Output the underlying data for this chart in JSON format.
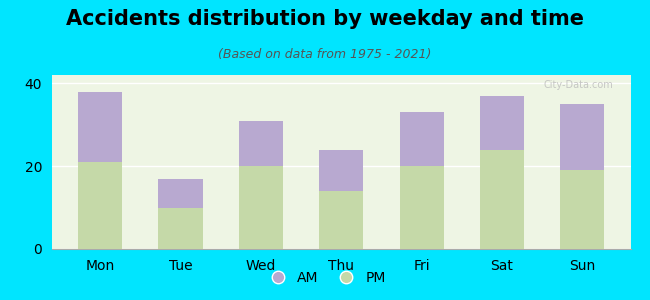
{
  "title": "Accidents distribution by weekday and time",
  "subtitle": "(Based on data from 1975 - 2021)",
  "categories": [
    "Mon",
    "Tue",
    "Wed",
    "Thu",
    "Fri",
    "Sat",
    "Sun"
  ],
  "pm_values": [
    21,
    10,
    20,
    14,
    20,
    24,
    19
  ],
  "am_values": [
    17,
    7,
    11,
    10,
    13,
    13,
    16
  ],
  "am_color": "#b8a9d0",
  "pm_color": "#c5d9a8",
  "background_outer": "#00e5ff",
  "background_inner": "#eef5e4",
  "ylim": [
    0,
    42
  ],
  "yticks": [
    0,
    20,
    40
  ],
  "bar_width": 0.55,
  "legend_am": "AM",
  "legend_pm": "PM",
  "title_fontsize": 15,
  "subtitle_fontsize": 9,
  "tick_fontsize": 10,
  "legend_fontsize": 10,
  "watermark": "City-Data.com"
}
